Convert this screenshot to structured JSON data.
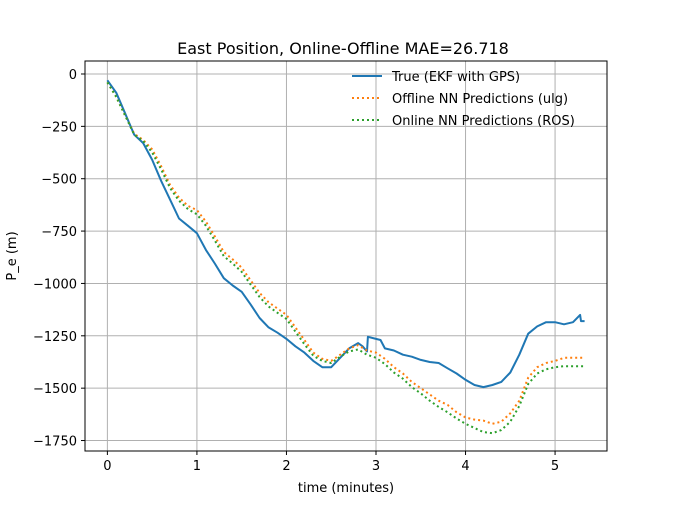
{
  "chart_data": {
    "type": "line",
    "title": "East Position, Online-Offline  MAE=26.718",
    "xlabel": "time (minutes)",
    "ylabel": "P_e (m)",
    "xlim": [
      -0.25,
      5.58
    ],
    "ylim": [
      -1800,
      62
    ],
    "xticks": [
      0,
      1,
      2,
      3,
      4,
      5
    ],
    "yticks": [
      0,
      -250,
      -500,
      -750,
      -1000,
      -1250,
      -1500,
      -1750
    ],
    "xtick_labels": [
      "0",
      "1",
      "2",
      "3",
      "4",
      "5"
    ],
    "ytick_labels": [
      "0",
      "−250",
      "−500",
      "−750",
      "−1000",
      "−1250",
      "−1500",
      "−1750"
    ],
    "grid": true,
    "legend_position": "top-right",
    "series": [
      {
        "name": "True (EKF with GPS)",
        "color": "#1f77b4",
        "style": "solid",
        "points": [
          [
            0.0,
            -30
          ],
          [
            0.1,
            -90
          ],
          [
            0.2,
            -190
          ],
          [
            0.3,
            -290
          ],
          [
            0.4,
            -330
          ],
          [
            0.5,
            -410
          ],
          [
            0.6,
            -510
          ],
          [
            0.7,
            -600
          ],
          [
            0.8,
            -690
          ],
          [
            0.9,
            -725
          ],
          [
            1.0,
            -760
          ],
          [
            1.1,
            -840
          ],
          [
            1.2,
            -905
          ],
          [
            1.3,
            -975
          ],
          [
            1.4,
            -1010
          ],
          [
            1.5,
            -1040
          ],
          [
            1.6,
            -1100
          ],
          [
            1.7,
            -1165
          ],
          [
            1.8,
            -1210
          ],
          [
            1.9,
            -1235
          ],
          [
            2.0,
            -1265
          ],
          [
            2.1,
            -1300
          ],
          [
            2.2,
            -1330
          ],
          [
            2.3,
            -1370
          ],
          [
            2.4,
            -1400
          ],
          [
            2.5,
            -1400
          ],
          [
            2.6,
            -1355
          ],
          [
            2.7,
            -1310
          ],
          [
            2.8,
            -1285
          ],
          [
            2.85,
            -1300
          ],
          [
            2.9,
            -1325
          ],
          [
            2.91,
            -1255
          ],
          [
            3.0,
            -1265
          ],
          [
            3.05,
            -1270
          ],
          [
            3.1,
            -1310
          ],
          [
            3.2,
            -1320
          ],
          [
            3.3,
            -1340
          ],
          [
            3.4,
            -1350
          ],
          [
            3.5,
            -1365
          ],
          [
            3.6,
            -1375
          ],
          [
            3.7,
            -1380
          ],
          [
            3.8,
            -1405
          ],
          [
            3.9,
            -1430
          ],
          [
            4.0,
            -1460
          ],
          [
            4.1,
            -1485
          ],
          [
            4.2,
            -1495
          ],
          [
            4.3,
            -1485
          ],
          [
            4.4,
            -1470
          ],
          [
            4.5,
            -1425
          ],
          [
            4.6,
            -1340
          ],
          [
            4.7,
            -1240
          ],
          [
            4.8,
            -1205
          ],
          [
            4.9,
            -1185
          ],
          [
            5.0,
            -1185
          ],
          [
            5.1,
            -1195
          ],
          [
            5.2,
            -1185
          ],
          [
            5.28,
            -1150
          ],
          [
            5.29,
            -1180
          ],
          [
            5.33,
            -1180
          ]
        ]
      },
      {
        "name": "Offline NN Predictions (ulg)",
        "color": "#ff7f0e",
        "style": "dotted",
        "points": [
          [
            0.0,
            -40
          ],
          [
            0.1,
            -110
          ],
          [
            0.2,
            -200
          ],
          [
            0.3,
            -285
          ],
          [
            0.4,
            -315
          ],
          [
            0.5,
            -360
          ],
          [
            0.6,
            -440
          ],
          [
            0.7,
            -530
          ],
          [
            0.8,
            -590
          ],
          [
            0.9,
            -630
          ],
          [
            1.0,
            -650
          ],
          [
            1.1,
            -705
          ],
          [
            1.2,
            -775
          ],
          [
            1.3,
            -850
          ],
          [
            1.4,
            -885
          ],
          [
            1.5,
            -925
          ],
          [
            1.6,
            -985
          ],
          [
            1.7,
            -1045
          ],
          [
            1.8,
            -1090
          ],
          [
            1.9,
            -1120
          ],
          [
            2.0,
            -1150
          ],
          [
            2.1,
            -1210
          ],
          [
            2.2,
            -1270
          ],
          [
            2.3,
            -1330
          ],
          [
            2.4,
            -1360
          ],
          [
            2.5,
            -1370
          ],
          [
            2.6,
            -1340
          ],
          [
            2.7,
            -1310
          ],
          [
            2.8,
            -1295
          ],
          [
            2.9,
            -1320
          ],
          [
            3.0,
            -1330
          ],
          [
            3.1,
            -1360
          ],
          [
            3.2,
            -1400
          ],
          [
            3.3,
            -1430
          ],
          [
            3.4,
            -1470
          ],
          [
            3.5,
            -1500
          ],
          [
            3.6,
            -1530
          ],
          [
            3.7,
            -1560
          ],
          [
            3.8,
            -1580
          ],
          [
            3.9,
            -1615
          ],
          [
            4.0,
            -1640
          ],
          [
            4.1,
            -1650
          ],
          [
            4.2,
            -1655
          ],
          [
            4.3,
            -1670
          ],
          [
            4.4,
            -1660
          ],
          [
            4.5,
            -1620
          ],
          [
            4.6,
            -1560
          ],
          [
            4.7,
            -1450
          ],
          [
            4.8,
            -1400
          ],
          [
            4.9,
            -1380
          ],
          [
            5.0,
            -1370
          ],
          [
            5.1,
            -1355
          ],
          [
            5.2,
            -1355
          ],
          [
            5.33,
            -1355
          ]
        ]
      },
      {
        "name": "Online NN Predictions (ROS)",
        "color": "#2ca02c",
        "style": "dotted",
        "points": [
          [
            0.0,
            -40
          ],
          [
            0.1,
            -110
          ],
          [
            0.2,
            -200
          ],
          [
            0.3,
            -290
          ],
          [
            0.4,
            -320
          ],
          [
            0.5,
            -375
          ],
          [
            0.6,
            -455
          ],
          [
            0.7,
            -545
          ],
          [
            0.8,
            -605
          ],
          [
            0.9,
            -645
          ],
          [
            1.0,
            -670
          ],
          [
            1.1,
            -725
          ],
          [
            1.2,
            -795
          ],
          [
            1.3,
            -870
          ],
          [
            1.4,
            -905
          ],
          [
            1.5,
            -945
          ],
          [
            1.6,
            -1005
          ],
          [
            1.7,
            -1065
          ],
          [
            1.8,
            -1110
          ],
          [
            1.9,
            -1140
          ],
          [
            2.0,
            -1170
          ],
          [
            2.1,
            -1230
          ],
          [
            2.2,
            -1290
          ],
          [
            2.3,
            -1345
          ],
          [
            2.4,
            -1370
          ],
          [
            2.5,
            -1380
          ],
          [
            2.6,
            -1350
          ],
          [
            2.7,
            -1325
          ],
          [
            2.8,
            -1315
          ],
          [
            2.9,
            -1340
          ],
          [
            3.0,
            -1355
          ],
          [
            3.1,
            -1385
          ],
          [
            3.2,
            -1425
          ],
          [
            3.3,
            -1455
          ],
          [
            3.4,
            -1495
          ],
          [
            3.5,
            -1525
          ],
          [
            3.6,
            -1560
          ],
          [
            3.7,
            -1590
          ],
          [
            3.8,
            -1615
          ],
          [
            3.9,
            -1645
          ],
          [
            4.0,
            -1670
          ],
          [
            4.1,
            -1690
          ],
          [
            4.2,
            -1710
          ],
          [
            4.3,
            -1715
          ],
          [
            4.4,
            -1700
          ],
          [
            4.5,
            -1660
          ],
          [
            4.6,
            -1585
          ],
          [
            4.7,
            -1480
          ],
          [
            4.8,
            -1430
          ],
          [
            4.9,
            -1410
          ],
          [
            5.0,
            -1400
          ],
          [
            5.1,
            -1395
          ],
          [
            5.2,
            -1395
          ],
          [
            5.33,
            -1395
          ]
        ]
      }
    ]
  }
}
